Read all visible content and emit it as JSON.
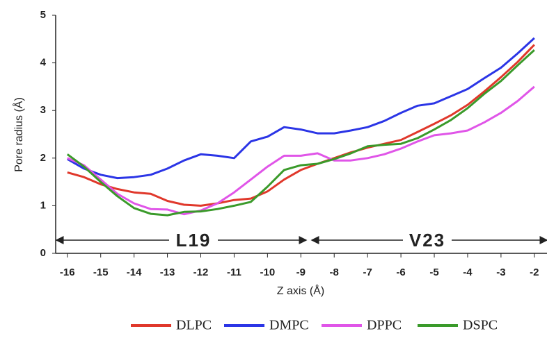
{
  "chart_data": {
    "type": "line",
    "x_label": "Z axis (Å)",
    "y_label": "Pore radius (Å)",
    "x": [
      -16,
      -15.5,
      -15,
      -14.5,
      -14,
      -13.5,
      -13,
      -12.5,
      -12,
      -11.5,
      -11,
      -10.5,
      -10,
      -9.5,
      -9,
      -8.5,
      -8,
      -7.5,
      -7,
      -6.5,
      -6,
      -5.5,
      -5,
      -4.5,
      -4,
      -3.5,
      -3,
      -2.5,
      -2
    ],
    "series": [
      {
        "name": "DLPC",
        "color": "#e0382b",
        "values": [
          1.7,
          1.6,
          1.45,
          1.35,
          1.28,
          1.25,
          1.1,
          1.02,
          1.0,
          1.05,
          1.12,
          1.15,
          1.3,
          1.55,
          1.75,
          1.88,
          2.0,
          2.12,
          2.22,
          2.3,
          2.38,
          2.55,
          2.72,
          2.9,
          3.12,
          3.4,
          3.7,
          4.02,
          4.38
        ]
      },
      {
        "name": "DMPC",
        "color": "#2b35e6",
        "values": [
          1.98,
          1.78,
          1.65,
          1.58,
          1.6,
          1.65,
          1.78,
          1.95,
          2.08,
          2.05,
          2.0,
          2.35,
          2.45,
          2.65,
          2.6,
          2.52,
          2.52,
          2.58,
          2.65,
          2.78,
          2.95,
          3.1,
          3.15,
          3.3,
          3.45,
          3.68,
          3.9,
          4.2,
          4.52
        ]
      },
      {
        "name": "DPPC",
        "color": "#e055e8",
        "values": [
          2.0,
          1.85,
          1.55,
          1.25,
          1.05,
          0.93,
          0.92,
          0.82,
          0.9,
          1.05,
          1.28,
          1.55,
          1.82,
          2.05,
          2.05,
          2.1,
          1.95,
          1.95,
          2.0,
          2.08,
          2.2,
          2.35,
          2.48,
          2.52,
          2.58,
          2.75,
          2.95,
          3.2,
          3.5
        ]
      },
      {
        "name": "DSPC",
        "color": "#3a9a2a",
        "values": [
          2.08,
          1.82,
          1.5,
          1.2,
          0.95,
          0.83,
          0.8,
          0.87,
          0.88,
          0.93,
          1.0,
          1.08,
          1.4,
          1.75,
          1.85,
          1.88,
          1.98,
          2.1,
          2.25,
          2.28,
          2.3,
          2.42,
          2.6,
          2.8,
          3.05,
          3.35,
          3.62,
          3.95,
          4.27
        ]
      }
    ],
    "xlim": [
      -16.35,
      -1.6
    ],
    "xticks": [
      -16,
      -15,
      -14,
      -13,
      -12,
      -11,
      -10,
      -9,
      -8,
      -7,
      -6,
      -5,
      -4,
      -3,
      -2
    ],
    "ylim": [
      0,
      5
    ],
    "yticks": [
      0,
      1,
      2,
      3,
      4,
      5
    ],
    "grid": false,
    "legend": "bottom",
    "annotations": [
      {
        "text": "L19"
      },
      {
        "text": "V23"
      }
    ]
  }
}
